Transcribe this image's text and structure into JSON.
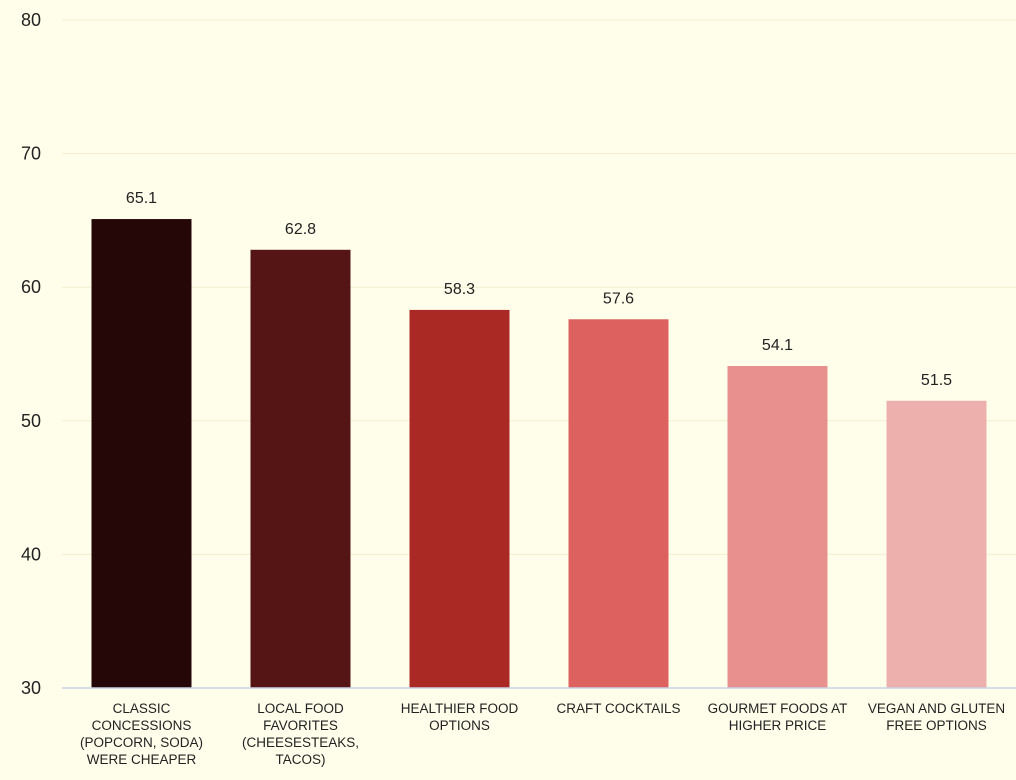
{
  "chart_data": {
    "type": "bar",
    "categories": [
      "CLASSIC CONCESSIONS (POPCORN, SODA) WERE CHEAPER",
      "LOCAL FOOD FAVORITES (CHEESESTEAKS, TACOS)",
      "HEALTHIER FOOD OPTIONS",
      "CRAFT COCKTAILS",
      "GOURMET FOODS AT HIGHER PRICE",
      "VEGAN AND GLUTEN FREE OPTIONS"
    ],
    "values": [
      65.1,
      62.8,
      58.3,
      57.6,
      54.1,
      51.5
    ],
    "value_labels": [
      "65.1",
      "62.8",
      "58.3",
      "57.6",
      "54.1",
      "51.5"
    ],
    "colors": [
      "#250707",
      "#561515",
      "#ab2925",
      "#dd615f",
      "#e8908d",
      "#edb0ad"
    ],
    "yticks": [
      "30",
      "40",
      "50",
      "60",
      "70",
      "80"
    ],
    "ylim": [
      30,
      80
    ],
    "grid": true,
    "gridline_color": "#f4edcf",
    "axis_color": "#c8d3e6",
    "background": "#fffeeb"
  }
}
